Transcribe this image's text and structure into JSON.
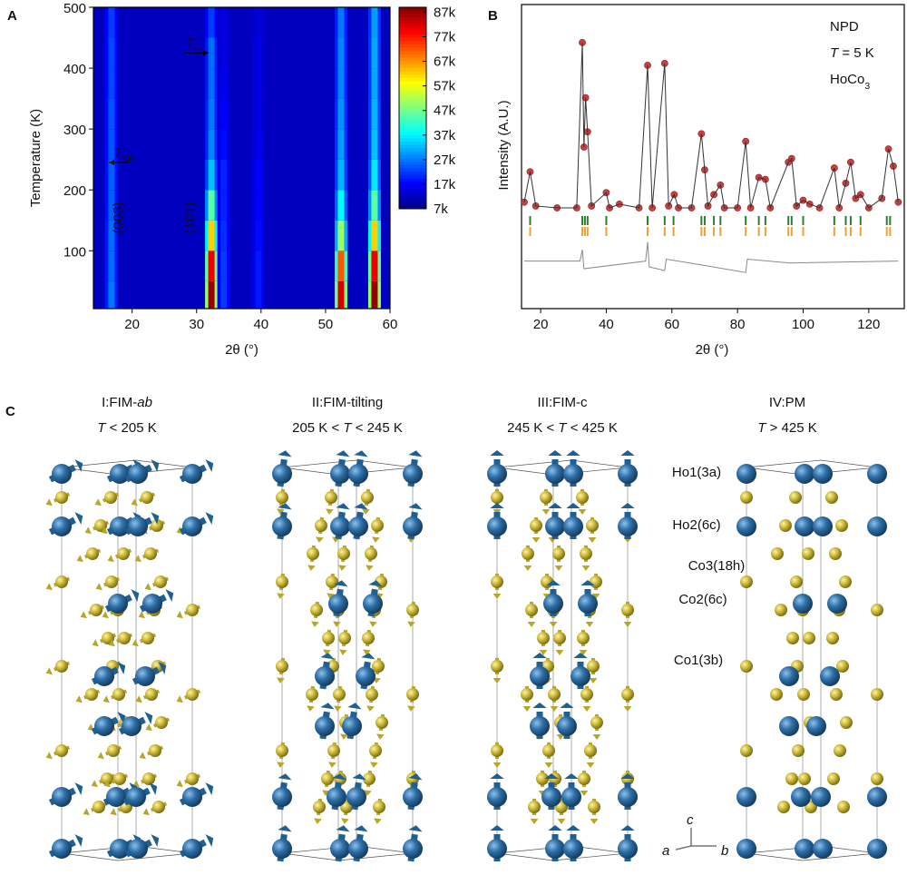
{
  "panel_labels": [
    "A",
    "B",
    "C"
  ],
  "chart_data": [
    {
      "type": "heatmap",
      "xlabel": "2θ (°)",
      "ylabel": "Temperature (K)",
      "xlim": [
        14,
        60
      ],
      "xticks": [
        20,
        30,
        40,
        50,
        60
      ],
      "ylim": [
        5,
        500
      ],
      "yticks": [
        100,
        200,
        300,
        400,
        500
      ],
      "colormap": "jet",
      "clim": [
        7000,
        89000
      ],
      "cticks": [
        {
          "value": 7000,
          "label": "7k"
        },
        {
          "value": 17000,
          "label": "17k"
        },
        {
          "value": 27000,
          "label": "27k"
        },
        {
          "value": 37000,
          "label": "37k"
        },
        {
          "value": 47000,
          "label": "47k"
        },
        {
          "value": 57000,
          "label": "57k"
        },
        {
          "value": 67000,
          "label": "67k"
        },
        {
          "value": 77000,
          "label": "77k"
        },
        {
          "value": 87000,
          "label": "87k"
        }
      ],
      "background": 12000,
      "y_bins": [
        5,
        50,
        100,
        150,
        200,
        250,
        300,
        350,
        400,
        450,
        500
      ],
      "series": [
        {
          "x": 16.8,
          "values": [
            27000,
            26000,
            26000,
            25000,
            25000,
            24000,
            24000,
            23000,
            23000,
            22000
          ]
        },
        {
          "x": 32.3,
          "values": [
            87000,
            80000,
            62000,
            45000,
            33000,
            28000,
            27000,
            26000,
            26000,
            22000
          ]
        },
        {
          "x": 34.2,
          "values": [
            22000,
            22000,
            21000,
            20000,
            20000,
            18000,
            17000,
            16000,
            15000,
            15000
          ]
        },
        {
          "x": 39.6,
          "values": [
            19000,
            19000,
            18000,
            17000,
            17000,
            16000,
            15000,
            15000,
            15000,
            14000
          ]
        },
        {
          "x": 52.4,
          "values": [
            82000,
            72000,
            50000,
            38000,
            32000,
            30000,
            29000,
            28000,
            28000,
            27000
          ]
        },
        {
          "x": 57.6,
          "values": [
            87000,
            80000,
            62000,
            45000,
            36000,
            33000,
            32000,
            31000,
            31000,
            30000
          ]
        }
      ],
      "annotations": [
        {
          "parts": [
            {
              "text": "T",
              "italic": true
            },
            {
              "text": "C",
              "sub": true
            }
          ],
          "value": 425,
          "direction": "right"
        },
        {
          "parts": [
            {
              "text": "T",
              "italic": true
            },
            {
              "text": "SR",
              "sub": true
            }
          ],
          "value": 245,
          "direction": "left"
        }
      ],
      "peak_labels": [
        "(003)",
        "(101)"
      ],
      "peak_label_color": "#d02020"
    },
    {
      "type": "line",
      "xlabel": "2θ (°)",
      "ylabel": "Intensity (A.U.)",
      "xlim": [
        15,
        130
      ],
      "xticks": [
        20,
        40,
        60,
        80,
        100,
        120
      ],
      "ylim": [
        0,
        160
      ],
      "x": [
        15,
        16.8,
        18.5,
        25,
        31,
        32.7,
        33.2,
        33.7,
        34.3,
        35.5,
        40,
        41,
        44,
        50,
        52.6,
        54,
        57.8,
        59,
        60.7,
        62,
        66,
        69,
        70,
        71,
        72.8,
        74.8,
        76,
        80,
        82.5,
        84,
        86.5,
        88.5,
        90,
        95.5,
        96.5,
        98,
        100,
        102,
        105,
        109.5,
        111,
        113,
        114.5,
        116,
        117.5,
        120,
        124,
        126,
        127.5,
        129
      ],
      "series": [
        {
          "color": "#c94040",
          "line_color": "#333333",
          "values": [
            56,
            72,
            54,
            53,
            53,
            140,
            85,
            111,
            93,
            54,
            61,
            53,
            55,
            53,
            128,
            53,
            129,
            54,
            60,
            53,
            53,
            92,
            73,
            54,
            60,
            65,
            53,
            53,
            88,
            53,
            69,
            68,
            53,
            77,
            79,
            54,
            57,
            55,
            53,
            74,
            53,
            66,
            77,
            58,
            60,
            53,
            58,
            84,
            75,
            56
          ]
        }
      ],
      "reflections": [
        {
          "color": "#2e7d32",
          "x": [
            16.8,
            32.7,
            33.5,
            34.3,
            40,
            52.6,
            57.8,
            60.5,
            69,
            70,
            72.8,
            74.8,
            82.5,
            86.5,
            88.5,
            95.5,
            96.5,
            100,
            109.5,
            113,
            114.5,
            117.5,
            125.5,
            126.5
          ]
        },
        {
          "color": "#f0a030",
          "x": [
            16.8,
            32.7,
            33.5,
            34.3,
            40,
            52.6,
            57.8,
            60.5,
            69,
            70,
            72.8,
            74.8,
            82.5,
            86.5,
            88.5,
            95.5,
            96.5,
            100,
            109.5,
            113,
            114.5,
            117.5,
            125.5,
            126.5
          ]
        }
      ],
      "difference": {
        "color": "#888888",
        "x": [
          15,
          32,
          32.7,
          33.2,
          52,
          52.6,
          53.1,
          57.8,
          58.3,
          69,
          82.5,
          83,
          96,
          129
        ],
        "values": [
          25,
          25,
          31,
          21,
          25,
          35,
          22,
          20,
          26,
          23,
          19,
          26,
          24,
          25
        ]
      },
      "texts": [
        [
          {
            "text": "NPD"
          }
        ],
        [
          {
            "text": "T",
            "italic": true
          },
          {
            "text": " = 5 K"
          }
        ],
        [
          {
            "text": "HoCo"
          },
          {
            "text": "3",
            "sub": true
          }
        ]
      ]
    }
  ],
  "diagram": {
    "phases": [
      {
        "title": [
          {
            "text": "I:FIM-"
          },
          {
            "text": "ab",
            "italic": true
          }
        ],
        "range": [
          {
            "text": "T",
            "italic": true
          },
          {
            "text": " < 205 K"
          }
        ]
      },
      {
        "title": [
          {
            "text": "II:FIM-tilting"
          }
        ],
        "range": [
          {
            "text": "205 K < "
          },
          {
            "text": "T",
            "italic": true
          },
          {
            "text": " < 245 K"
          }
        ]
      },
      {
        "title": [
          {
            "text": "III:FIM-c"
          }
        ],
        "range": [
          {
            "text": "245 K < "
          },
          {
            "text": "T",
            "italic": true
          },
          {
            "text": " < 425 K"
          }
        ]
      },
      {
        "title": [
          {
            "text": "IV:PM"
          }
        ],
        "range": [
          {
            "text": "T",
            "italic": true
          },
          {
            "text": " > 425 K"
          }
        ]
      }
    ],
    "site_labels": [
      "Ho1(3a)",
      "Ho2(6c)",
      "Co3(18h)",
      "Co2(6c)",
      "Co1(3b)"
    ],
    "axes": [
      "a",
      "b",
      "c"
    ]
  }
}
